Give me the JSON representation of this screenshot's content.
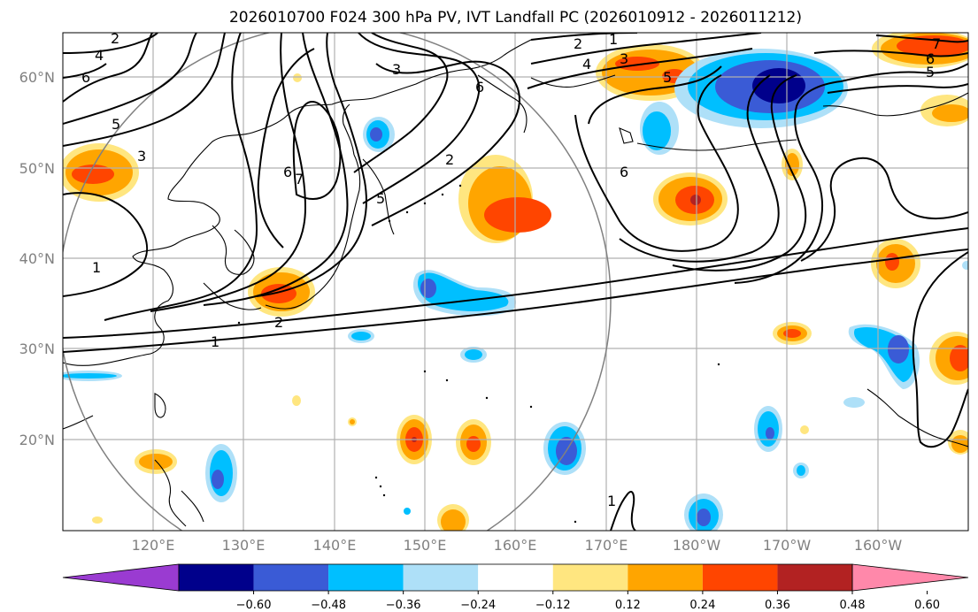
{
  "title": "2026010700 F024 300 hPa PV, IVT Landfall PC (2026010912 - 2026011212)",
  "lat_labels": [
    "20°N",
    "30°N",
    "40°N",
    "50°N",
    "60°N"
  ],
  "lon_labels": [
    "120°E",
    "130°E",
    "140°E",
    "150°E",
    "160°E",
    "170°E",
    "180°W",
    "170°W",
    "160°W"
  ],
  "colorbar": {
    "ticks": [
      "−0.60",
      "−0.48",
      "−0.36",
      "−0.24",
      "−0.12",
      "0.12",
      "0.24",
      "0.36",
      "0.48",
      "0.60"
    ],
    "colors": [
      "#9a3bd1",
      "#00008b",
      "#3a5bd6",
      "#00bfff",
      "#aee0f8",
      "#ffffff",
      "#ffe680",
      "#ffa500",
      "#ff4500",
      "#b22222",
      "#ff88aa"
    ]
  },
  "contour_labels": [
    "2",
    "1",
    "4",
    "6",
    "5",
    "3",
    "1",
    "6",
    "7",
    "5",
    "3",
    "2",
    "1",
    "2",
    "4",
    "3",
    "5",
    "6",
    "7",
    "6",
    "5",
    "2",
    "6",
    "1"
  ]
}
